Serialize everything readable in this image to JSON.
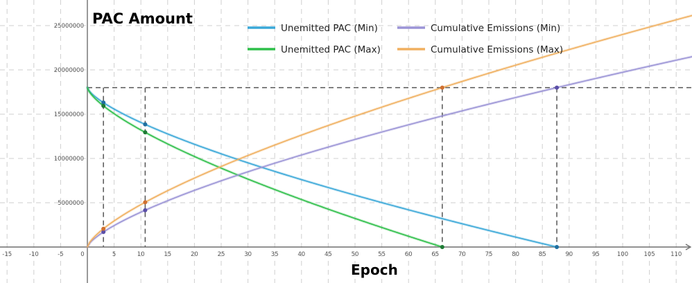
{
  "chart_data": {
    "type": "line",
    "title": "PAC Amount",
    "xlabel": "Epoch",
    "ylabel": "",
    "xlim": [
      -16,
      113
    ],
    "ylim": [
      -3900000,
      28000000
    ],
    "x_ticks": [
      -15,
      -10,
      -5,
      0,
      5,
      10,
      15,
      20,
      25,
      30,
      35,
      40,
      45,
      50,
      55,
      60,
      65,
      70,
      75,
      80,
      85,
      90,
      95,
      100,
      105,
      110
    ],
    "y_ticks": [
      5000000,
      10000000,
      15000000,
      20000000,
      25000000
    ],
    "grid": true,
    "legend_position": "top-center",
    "total_supply": 18000000,
    "series": [
      {
        "name": "Unemitted PAC (Min)",
        "color": "#3aa8d8",
        "kind": "unemitted",
        "end_epoch": 87.7,
        "points": [
          [
            0,
            18000000
          ],
          [
            3,
            16500000
          ],
          [
            10.8,
            13900000
          ],
          [
            30,
            9000000
          ],
          [
            50,
            5300000
          ],
          [
            66.3,
            2700000
          ],
          [
            87.7,
            0
          ]
        ]
      },
      {
        "name": "Unemitted PAC (Max)",
        "color": "#2fbf4a",
        "kind": "unemitted",
        "end_epoch": 66.3,
        "points": [
          [
            0,
            18000000
          ],
          [
            3,
            16200000
          ],
          [
            10.8,
            13100000
          ],
          [
            30,
            7300000
          ],
          [
            50,
            3300000
          ],
          [
            66.3,
            0
          ]
        ]
      },
      {
        "name": "Cumulative Emissions (Min)",
        "color": "#9b94d6",
        "kind": "cumulative",
        "end_epoch": 87.7,
        "points": [
          [
            0,
            0
          ],
          [
            3,
            1500000
          ],
          [
            10.8,
            4100000
          ],
          [
            30,
            9000000
          ],
          [
            66.3,
            15300000
          ],
          [
            87.7,
            18000000
          ],
          [
            113,
            20700000
          ]
        ]
      },
      {
        "name": "Cumulative Emissions (Max)",
        "color": "#f0b060",
        "kind": "cumulative",
        "end_epoch": 66.3,
        "points": [
          [
            0,
            0
          ],
          [
            3,
            1800000
          ],
          [
            10.8,
            4900000
          ],
          [
            30,
            10700000
          ],
          [
            66.3,
            18000000
          ],
          [
            113,
            24700000
          ]
        ]
      }
    ],
    "markers": [
      {
        "x": 3,
        "series": [
          0,
          1,
          2,
          3
        ]
      },
      {
        "x": 10.8,
        "series": [
          0,
          1,
          2,
          3
        ]
      },
      {
        "x": 66.3,
        "series": [
          1,
          3
        ]
      },
      {
        "x": 87.7,
        "series": [
          0,
          2
        ]
      }
    ],
    "guides": {
      "horizontal_y": 18000000,
      "vertical_x": [
        3,
        10.8,
        66.3,
        87.7
      ]
    }
  }
}
